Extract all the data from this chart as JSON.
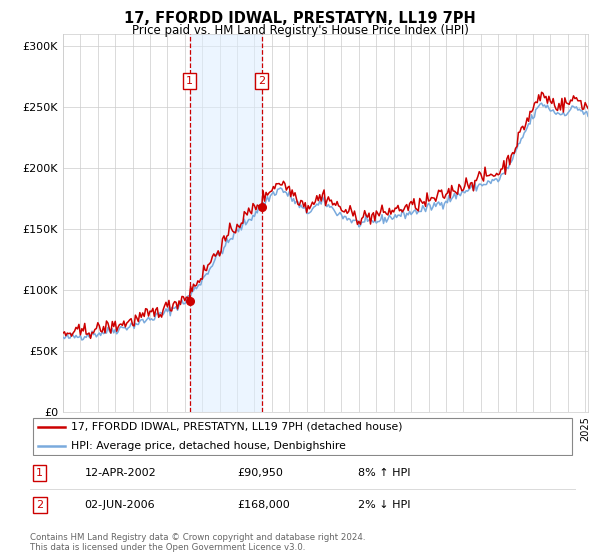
{
  "title": "17, FFORDD IDWAL, PRESTATYN, LL19 7PH",
  "subtitle": "Price paid vs. HM Land Registry's House Price Index (HPI)",
  "ylabel_ticks": [
    "£0",
    "£50K",
    "£100K",
    "£150K",
    "£200K",
    "£250K",
    "£300K"
  ],
  "ytick_values": [
    0,
    50000,
    100000,
    150000,
    200000,
    250000,
    300000
  ],
  "ylim": [
    0,
    310000
  ],
  "sale1_price": 90950,
  "sale2_price": 168000,
  "legend_line1": "17, FFORDD IDWAL, PRESTATYN, LL19 7PH (detached house)",
  "legend_line2": "HPI: Average price, detached house, Denbighshire",
  "footer1": "Contains HM Land Registry data © Crown copyright and database right 2024.",
  "footer2": "This data is licensed under the Open Government Licence v3.0.",
  "table_row1": [
    "1",
    "12-APR-2002",
    "£90,950",
    "8% ↑ HPI"
  ],
  "table_row2": [
    "2",
    "02-JUN-2006",
    "£168,000",
    "2% ↓ HPI"
  ],
  "hpi_color": "#7aaadd",
  "price_color": "#cc0000",
  "shade_color": "#ddeeff",
  "vline_color": "#cc0000",
  "grid_color": "#cccccc",
  "bg_color": "#ffffff",
  "box_color": "#cc0000",
  "start_year": 1995,
  "end_year": 2025
}
